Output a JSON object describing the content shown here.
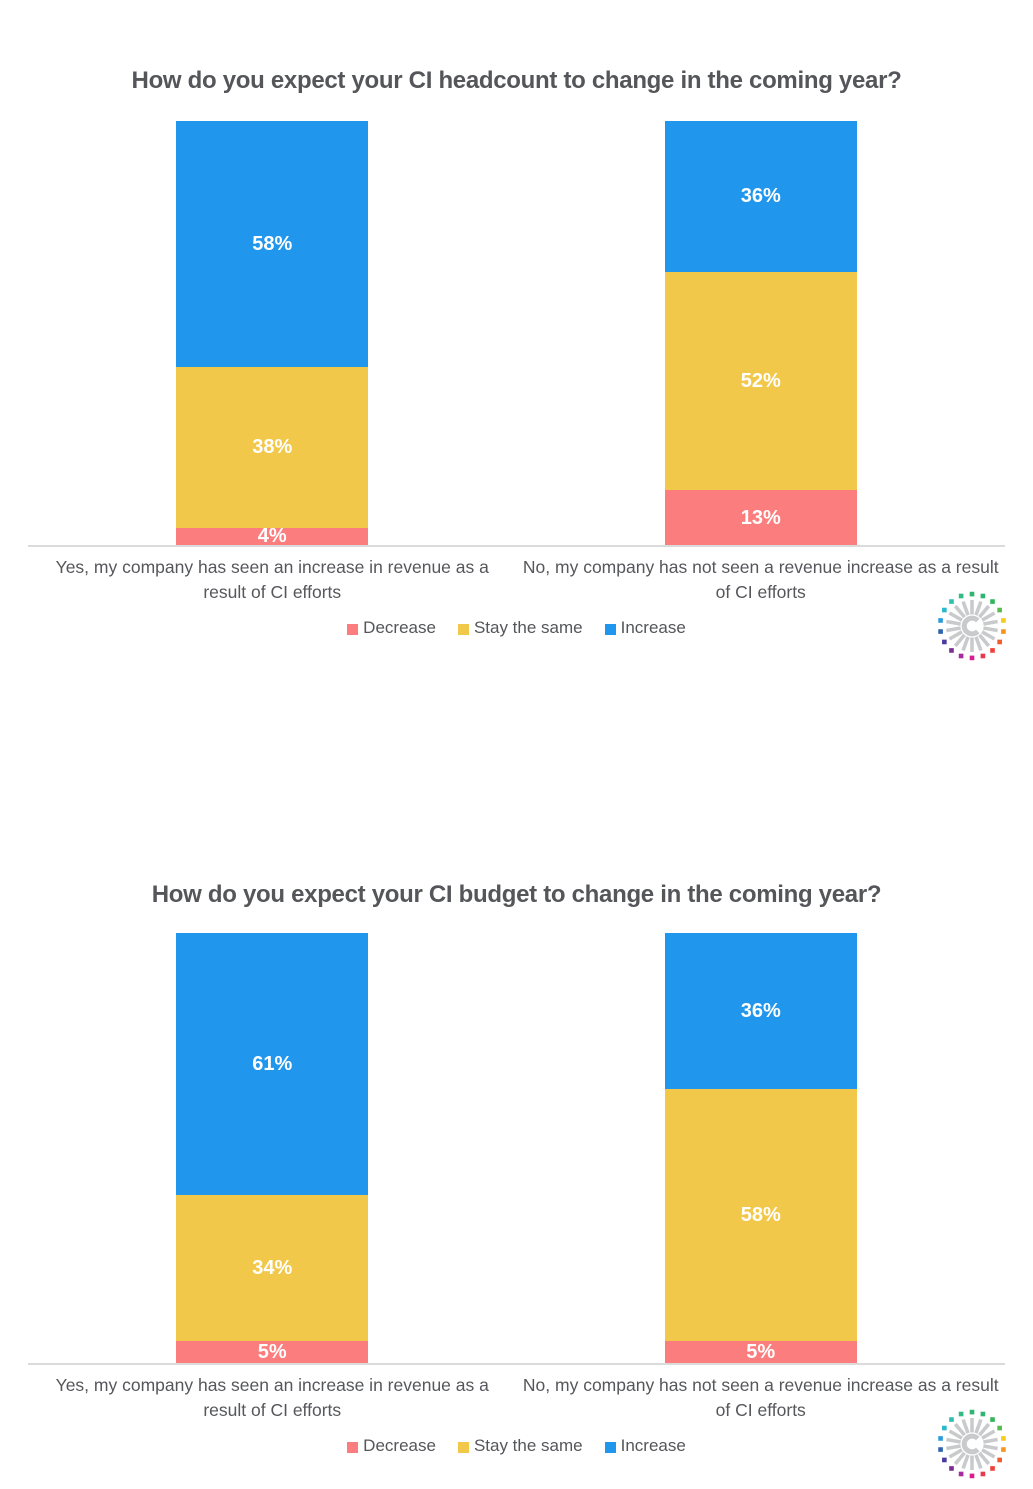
{
  "page": {
    "background": "#FFFFFF"
  },
  "colors": {
    "title_text": "#55565A",
    "category_label_text": "#56575B",
    "legend_text": "#55565A",
    "value_label_text": "#FFFFFF",
    "axis_line": "#DBDBDB"
  },
  "chart_data": [
    {
      "type": "bar",
      "stacked": true,
      "units": "percent",
      "title": "How do you expect your CI headcount to change in the coming year?",
      "categories": [
        "Yes, my company has seen an increase in revenue as a result of CI efforts",
        "No, my company has not seen a revenue increase as a result of CI efforts"
      ],
      "series": [
        {
          "name": "Decrease",
          "color": "#FC7D7D",
          "values": [
            4,
            13
          ]
        },
        {
          "name": "Stay the same",
          "color": "#F2C84B",
          "values": [
            38,
            52
          ]
        },
        {
          "name": "Increase",
          "color": "#2196ED",
          "values": [
            58,
            36
          ]
        }
      ],
      "value_labels": [
        [
          "4%",
          "38%",
          "58%"
        ],
        [
          "13%",
          "52%",
          "36%"
        ]
      ],
      "ylim": [
        0,
        100
      ],
      "grid": false,
      "legend": [
        "Decrease",
        "Stay the same",
        "Increase"
      ],
      "legend_position": "bottom"
    },
    {
      "type": "bar",
      "stacked": true,
      "units": "percent",
      "title": "How do you expect your CI budget to change in the coming year?",
      "categories": [
        "Yes, my company has seen an increase in revenue as a result of CI efforts",
        "No, my company has not seen a revenue increase as a result of CI efforts"
      ],
      "series": [
        {
          "name": "Decrease",
          "color": "#FC7D7D",
          "values": [
            5,
            5
          ]
        },
        {
          "name": "Stay the same",
          "color": "#F2C84B",
          "values": [
            34,
            58
          ]
        },
        {
          "name": "Increase",
          "color": "#2196ED",
          "values": [
            61,
            36
          ]
        }
      ],
      "value_labels": [
        [
          "5%",
          "34%",
          "61%"
        ],
        [
          "5%",
          "58%",
          "36%"
        ]
      ],
      "ylim": [
        0,
        100
      ],
      "grid": false,
      "legend": [
        "Decrease",
        "Stay the same",
        "Increase"
      ],
      "legend_position": "bottom"
    }
  ],
  "logo": {
    "name": "crayon-logo",
    "ray_color": "#C9CACB",
    "c_color": "#C9CACB",
    "dot_colors": [
      "#2FB572",
      "#2FB572",
      "#35B45C",
      "#58BB4E",
      "#F5CC17",
      "#F7941E",
      "#F15B2B",
      "#EF4138",
      "#E83A4E",
      "#DA1C8F",
      "#A62B9E",
      "#7C2F93",
      "#4A3B9F",
      "#2E64AB",
      "#2D9CDB",
      "#29B9CF",
      "#2FBFAF",
      "#33BA85"
    ]
  }
}
